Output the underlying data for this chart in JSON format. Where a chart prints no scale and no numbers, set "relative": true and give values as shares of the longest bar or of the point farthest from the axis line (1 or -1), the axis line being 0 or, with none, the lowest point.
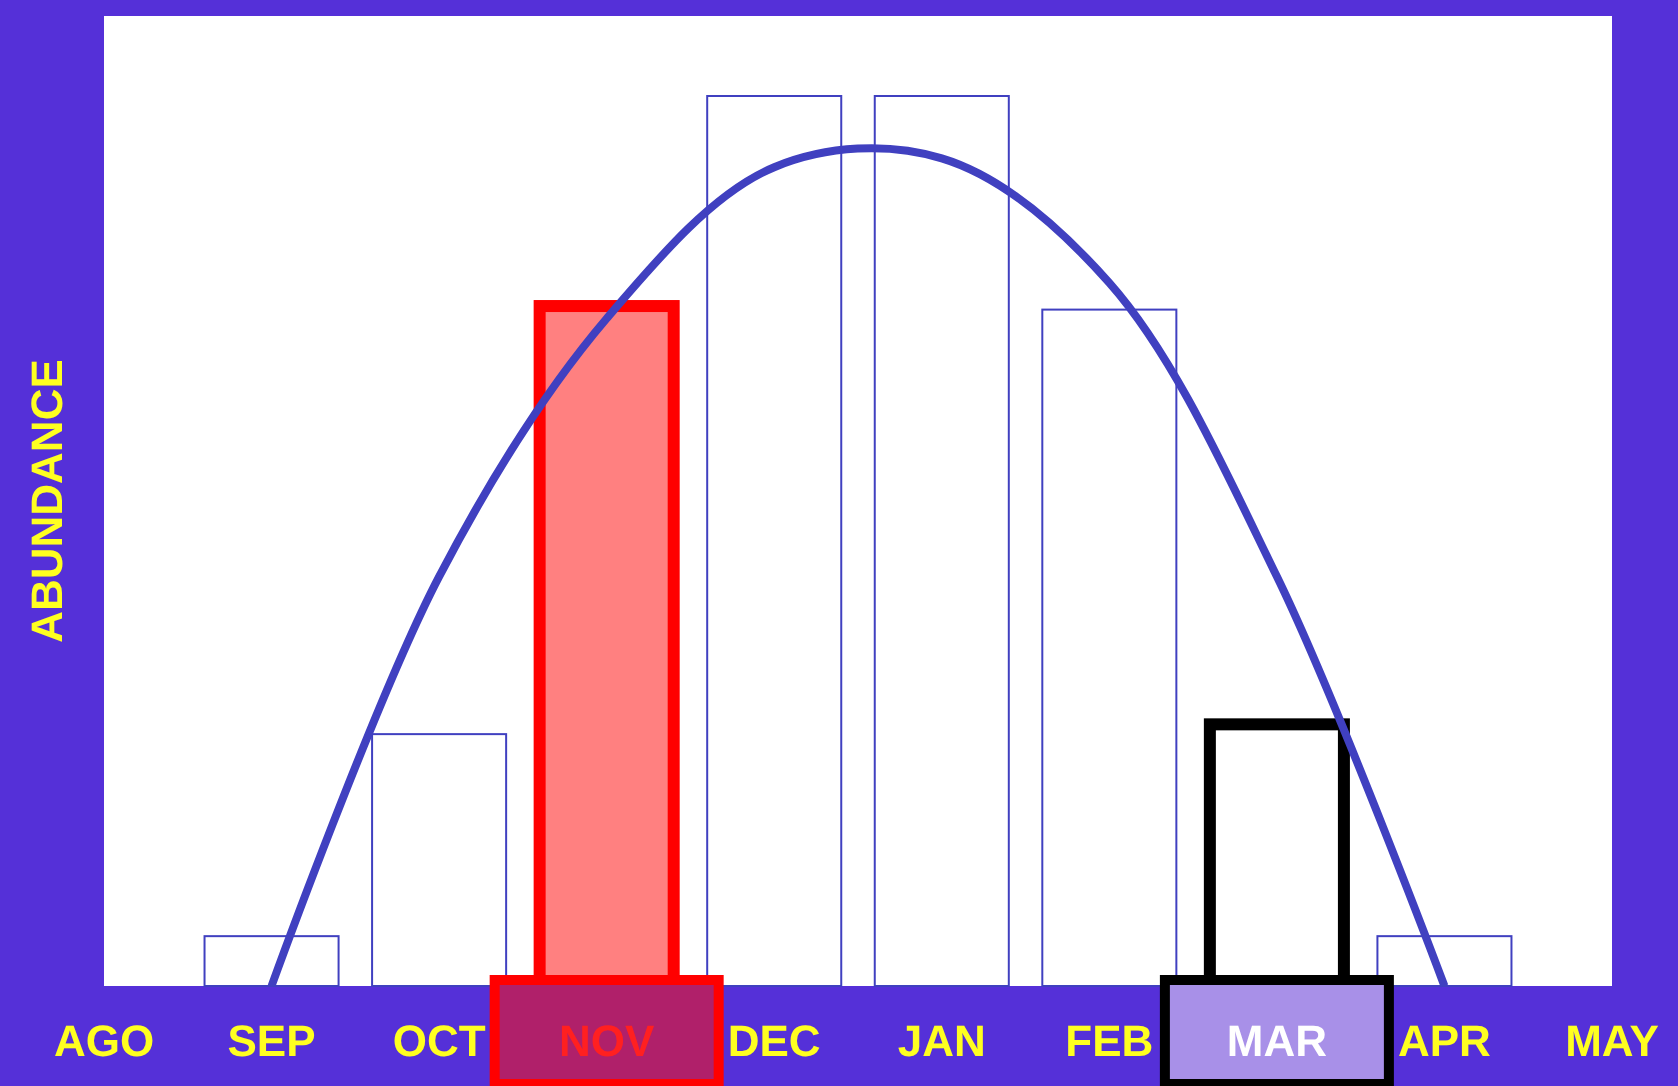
{
  "chart_data": {
    "type": "bar",
    "ylabel": "ABUNDANCE",
    "relative": true,
    "categories": [
      "AGO",
      "SEP",
      "OCT",
      "NOV",
      "DEC",
      "JAN",
      "FEB",
      "MAR",
      "APR",
      "MAY"
    ],
    "series": [
      {
        "colors": [
          "#ffffff",
          "#ffffff",
          "#ffffff",
          "#ff8080",
          "#ffffff",
          "#ffffff",
          "#ffffff",
          "#ffffff",
          "#ffffff",
          "#ffffff"
        ],
        "values": [
          0,
          0.056,
          0.283,
          0.764,
          1,
          1,
          0.76,
          0.294,
          0.056,
          0
        ]
      },
      {
        "type": "line",
        "color": "#4040c0",
        "values": [
          null,
          0,
          0.46,
          0.75,
          0.92,
          0.93,
          0.79,
          0.46,
          0,
          null
        ]
      }
    ]
  }
}
